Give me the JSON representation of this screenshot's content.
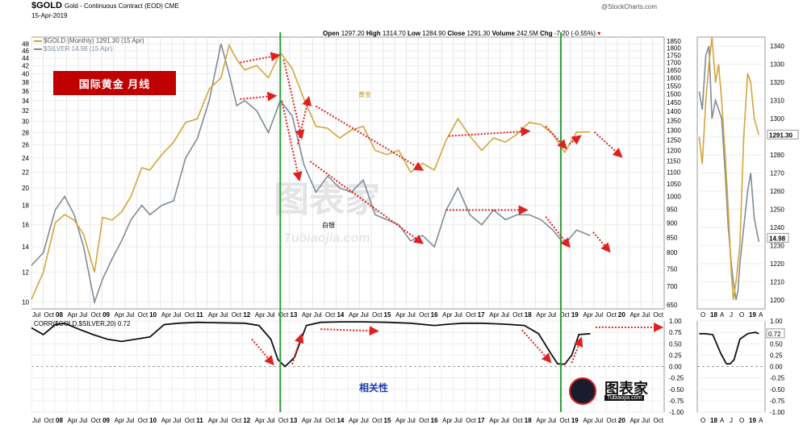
{
  "header": {
    "symbol": "$GOLD",
    "description": "Gold - Continuous Contract (EOD) CME",
    "date": "15-Apr-2019",
    "credit": "@StockCharts.com",
    "open_label": "Open",
    "open": "1297.20",
    "high_label": "High",
    "high": "1314.70",
    "low_label": "Low",
    "low": "1284.90",
    "close_label": "Close",
    "close": "1291.30",
    "volume_label": "Volume",
    "volume": "242.5M",
    "chg_label": "Chg",
    "chg": "-7.20 (-0.55%)",
    "chg_arrow": "▾"
  },
  "legend": {
    "gold": "$GOLD (Monthly) 1291.30 (15 Apr)",
    "silver": "$SILVER 14.98 (15 Apr)"
  },
  "annotations": {
    "banner": "国际黄金 月线",
    "gold_label": "黄金",
    "silver_label": "白银",
    "corr_label": "相关性",
    "watermark_cn": "图表家",
    "watermark_en": "Tubiaojia.com"
  },
  "logo": {
    "name": "图表家",
    "url": "Tubiaojia.com"
  },
  "colors": {
    "gold": "#d4a53a",
    "silver": "#7f8c96",
    "corr": "#111111",
    "marker_green": "#2e9e3a",
    "arrow_red": "#e02020",
    "banner_red": "#c00000"
  },
  "chart_data": [
    {
      "type": "line",
      "title": "$GOLD Gold - Continuous Contract (EOD) CME",
      "xlabel": "",
      "ylabel": "",
      "x_tick_labels": [
        "Jul",
        "Oct",
        "08",
        "Apr",
        "Jul",
        "Oct",
        "09",
        "Apr",
        "Jul",
        "Oct",
        "10",
        "Apr",
        "Jul",
        "Oct",
        "11",
        "Apr",
        "Jul",
        "Oct",
        "12",
        "Apr",
        "Jul",
        "Oct",
        "13",
        "Apr",
        "Jul",
        "Oct",
        "14",
        "Apr",
        "Jul",
        "Oct",
        "15",
        "Apr",
        "Jul",
        "Oct",
        "16",
        "Apr",
        "Jul",
        "Oct",
        "17",
        "Apr",
        "Jul",
        "Oct",
        "18",
        "Apr",
        "Jul",
        "Oct",
        "19",
        "Apr",
        "Jul",
        "Oct",
        "20",
        "Apr",
        "Jul",
        "Oct"
      ],
      "x_range": [
        2007.5,
        2020.85
      ],
      "left_axis": {
        "series": "$SILVER",
        "scale": "log",
        "range": [
          9.6,
          50
        ],
        "ticks": [
          10,
          12,
          14,
          16,
          18,
          20,
          22,
          24,
          26,
          28,
          30,
          32,
          34,
          36,
          38,
          40,
          42,
          44,
          46,
          48
        ]
      },
      "right_axis": {
        "series": "$GOLD",
        "scale": "log",
        "range": [
          640,
          1880
        ],
        "ticks": [
          650,
          700,
          750,
          800,
          850,
          900,
          950,
          1000,
          1050,
          1100,
          1150,
          1200,
          1250,
          1300,
          1350,
          1400,
          1450,
          1500,
          1550,
          1600,
          1650,
          1700,
          1750,
          1800,
          1850
        ]
      },
      "vertical_markers": [
        2012.75,
        2018.67
      ],
      "series": [
        {
          "name": "$GOLD (Monthly)",
          "axis": "right",
          "x": [
            2007.5,
            2007.75,
            2008.0,
            2008.2,
            2008.4,
            2008.6,
            2008.83,
            2009.0,
            2009.2,
            2009.4,
            2009.6,
            2009.83,
            2010.0,
            2010.25,
            2010.5,
            2010.75,
            2011.0,
            2011.25,
            2011.5,
            2011.67,
            2011.83,
            2012.0,
            2012.25,
            2012.5,
            2012.75,
            2013.0,
            2013.25,
            2013.5,
            2013.75,
            2014.0,
            2014.25,
            2014.5,
            2014.75,
            2015.0,
            2015.25,
            2015.5,
            2015.75,
            2016.0,
            2016.25,
            2016.5,
            2016.75,
            2017.0,
            2017.25,
            2017.5,
            2017.75,
            2018.0,
            2018.25,
            2018.5,
            2018.75,
            2019.0,
            2019.29
          ],
          "y": [
            665,
            740,
            900,
            930,
            910,
            860,
            740,
            920,
            910,
            940,
            1000,
            1120,
            1110,
            1180,
            1240,
            1340,
            1360,
            1530,
            1600,
            1820,
            1720,
            1650,
            1680,
            1600,
            1770,
            1660,
            1470,
            1320,
            1310,
            1260,
            1300,
            1320,
            1200,
            1180,
            1200,
            1100,
            1140,
            1110,
            1250,
            1360,
            1270,
            1200,
            1260,
            1240,
            1280,
            1340,
            1330,
            1280,
            1190,
            1290,
            1291
          ]
        },
        {
          "name": "$SILVER",
          "axis": "left",
          "x": [
            2007.5,
            2007.75,
            2008.0,
            2008.2,
            2008.4,
            2008.6,
            2008.83,
            2009.0,
            2009.2,
            2009.4,
            2009.6,
            2009.83,
            2010.0,
            2010.25,
            2010.5,
            2010.75,
            2011.0,
            2011.25,
            2011.5,
            2011.67,
            2011.83,
            2012.0,
            2012.25,
            2012.5,
            2012.75,
            2013.0,
            2013.25,
            2013.5,
            2013.75,
            2014.0,
            2014.25,
            2014.5,
            2014.75,
            2015.0,
            2015.25,
            2015.5,
            2015.75,
            2016.0,
            2016.25,
            2016.5,
            2016.75,
            2017.0,
            2017.25,
            2017.5,
            2017.75,
            2018.0,
            2018.25,
            2018.5,
            2018.75,
            2019.0,
            2019.29
          ],
          "y": [
            12.5,
            13.5,
            17.5,
            19,
            17,
            14,
            10,
            11.5,
            13,
            14.5,
            16.5,
            18,
            17,
            18,
            18.5,
            24,
            27,
            34,
            48,
            40,
            33,
            34,
            32,
            28,
            34,
            31,
            23,
            19.5,
            21.5,
            20,
            19.5,
            21,
            17,
            16.5,
            16,
            14.5,
            15,
            14,
            17.5,
            20,
            17,
            16,
            17.5,
            16.5,
            17,
            17,
            16.5,
            15.5,
            14.2,
            15.5,
            14.98
          ]
        }
      ]
    },
    {
      "type": "line",
      "title": "CORR($GOLD,$SILVER,20) 0.72",
      "xlabel": "",
      "ylabel": "",
      "x_range": [
        2007.5,
        2020.85
      ],
      "ylim": [
        -1.0,
        1.0
      ],
      "y_ticks": [
        "1.00",
        "0.75",
        "0.50",
        "0.25",
        "0.00",
        "-0.25",
        "-0.50",
        "-0.75",
        "-1.00"
      ],
      "series": [
        {
          "name": "CORR($GOLD,$SILVER,20)",
          "x": [
            2007.5,
            2007.75,
            2008.0,
            2008.2,
            2008.5,
            2008.8,
            2009.1,
            2009.4,
            2009.7,
            2010.0,
            2010.3,
            2010.6,
            2011.0,
            2011.5,
            2012.0,
            2012.3,
            2012.55,
            2012.7,
            2012.85,
            2013.05,
            2013.3,
            2013.6,
            2014.0,
            2014.5,
            2015.0,
            2015.5,
            2016.0,
            2016.3,
            2016.6,
            2017.0,
            2017.5,
            2017.9,
            2018.2,
            2018.45,
            2018.6,
            2018.75,
            2018.9,
            2019.05,
            2019.29
          ],
          "y": [
            0.85,
            0.7,
            0.92,
            0.95,
            0.82,
            0.7,
            0.6,
            0.55,
            0.6,
            0.65,
            0.92,
            0.95,
            0.97,
            0.96,
            0.95,
            0.9,
            0.6,
            0.15,
            0.0,
            0.2,
            0.9,
            0.97,
            0.98,
            0.98,
            0.97,
            0.95,
            0.9,
            0.93,
            0.95,
            0.95,
            0.93,
            0.9,
            0.72,
            0.3,
            0.06,
            0.05,
            0.25,
            0.7,
            0.72
          ]
        }
      ]
    },
    {
      "type": "line",
      "title": "",
      "x_tick_labels": [
        "O",
        "18",
        "A",
        "J",
        "O",
        "19",
        "A"
      ],
      "x_range": [
        2017.7,
        2019.45
      ],
      "left_axis": {
        "series": "$GOLD",
        "range": [
          1195,
          1345
        ],
        "ticks": [
          1200,
          1210,
          1220,
          1230,
          1240,
          1250,
          1260,
          1270,
          1280,
          1290,
          1300,
          1310,
          1320,
          1330,
          1340
        ]
      },
      "series": [
        {
          "name": "$GOLD",
          "x": [
            2017.75,
            2017.83,
            2017.92,
            2018.0,
            2018.08,
            2018.17,
            2018.25,
            2018.33,
            2018.42,
            2018.5,
            2018.58,
            2018.63,
            2018.7,
            2018.75,
            2018.8,
            2018.9,
            2019.0,
            2019.08,
            2019.17,
            2019.29
          ],
          "y": [
            1290,
            1275,
            1310,
            1330,
            1345,
            1320,
            1330,
            1310,
            1280,
            1250,
            1215,
            1200,
            1210,
            1220,
            1230,
            1290,
            1325,
            1320,
            1300,
            1291
          ]
        },
        {
          "name": "$SILVER",
          "x": [
            2017.75,
            2017.83,
            2017.92,
            2018.0,
            2018.08,
            2018.17,
            2018.25,
            2018.33,
            2018.42,
            2018.5,
            2018.58,
            2018.63,
            2018.7,
            2018.75,
            2018.8,
            2018.9,
            2019.0,
            2019.08,
            2019.17,
            2019.29
          ],
          "y": [
            1315,
            1305,
            1335,
            1340,
            1300,
            1310,
            1305,
            1300,
            1270,
            1240,
            1220,
            1210,
            1200,
            1205,
            1220,
            1240,
            1260,
            1270,
            1245,
            1232
          ]
        }
      ],
      "end_labels": [
        "1291.30",
        "14.98"
      ],
      "corr_ticks": [
        "1.00",
        "0.75",
        "0.50",
        "0.25",
        "0.00",
        "-0.25",
        "-0.50",
        "-0.75",
        "-1.00"
      ],
      "corr_end_label": "0.72",
      "corr_series": {
        "x": [
          2017.75,
          2017.9,
          2018.1,
          2018.3,
          2018.45,
          2018.55,
          2018.65,
          2018.8,
          2019.0,
          2019.2,
          2019.29
        ],
        "y": [
          0.72,
          0.72,
          0.7,
          0.3,
          0.06,
          0.06,
          0.15,
          0.6,
          0.72,
          0.75,
          0.72
        ]
      }
    }
  ]
}
